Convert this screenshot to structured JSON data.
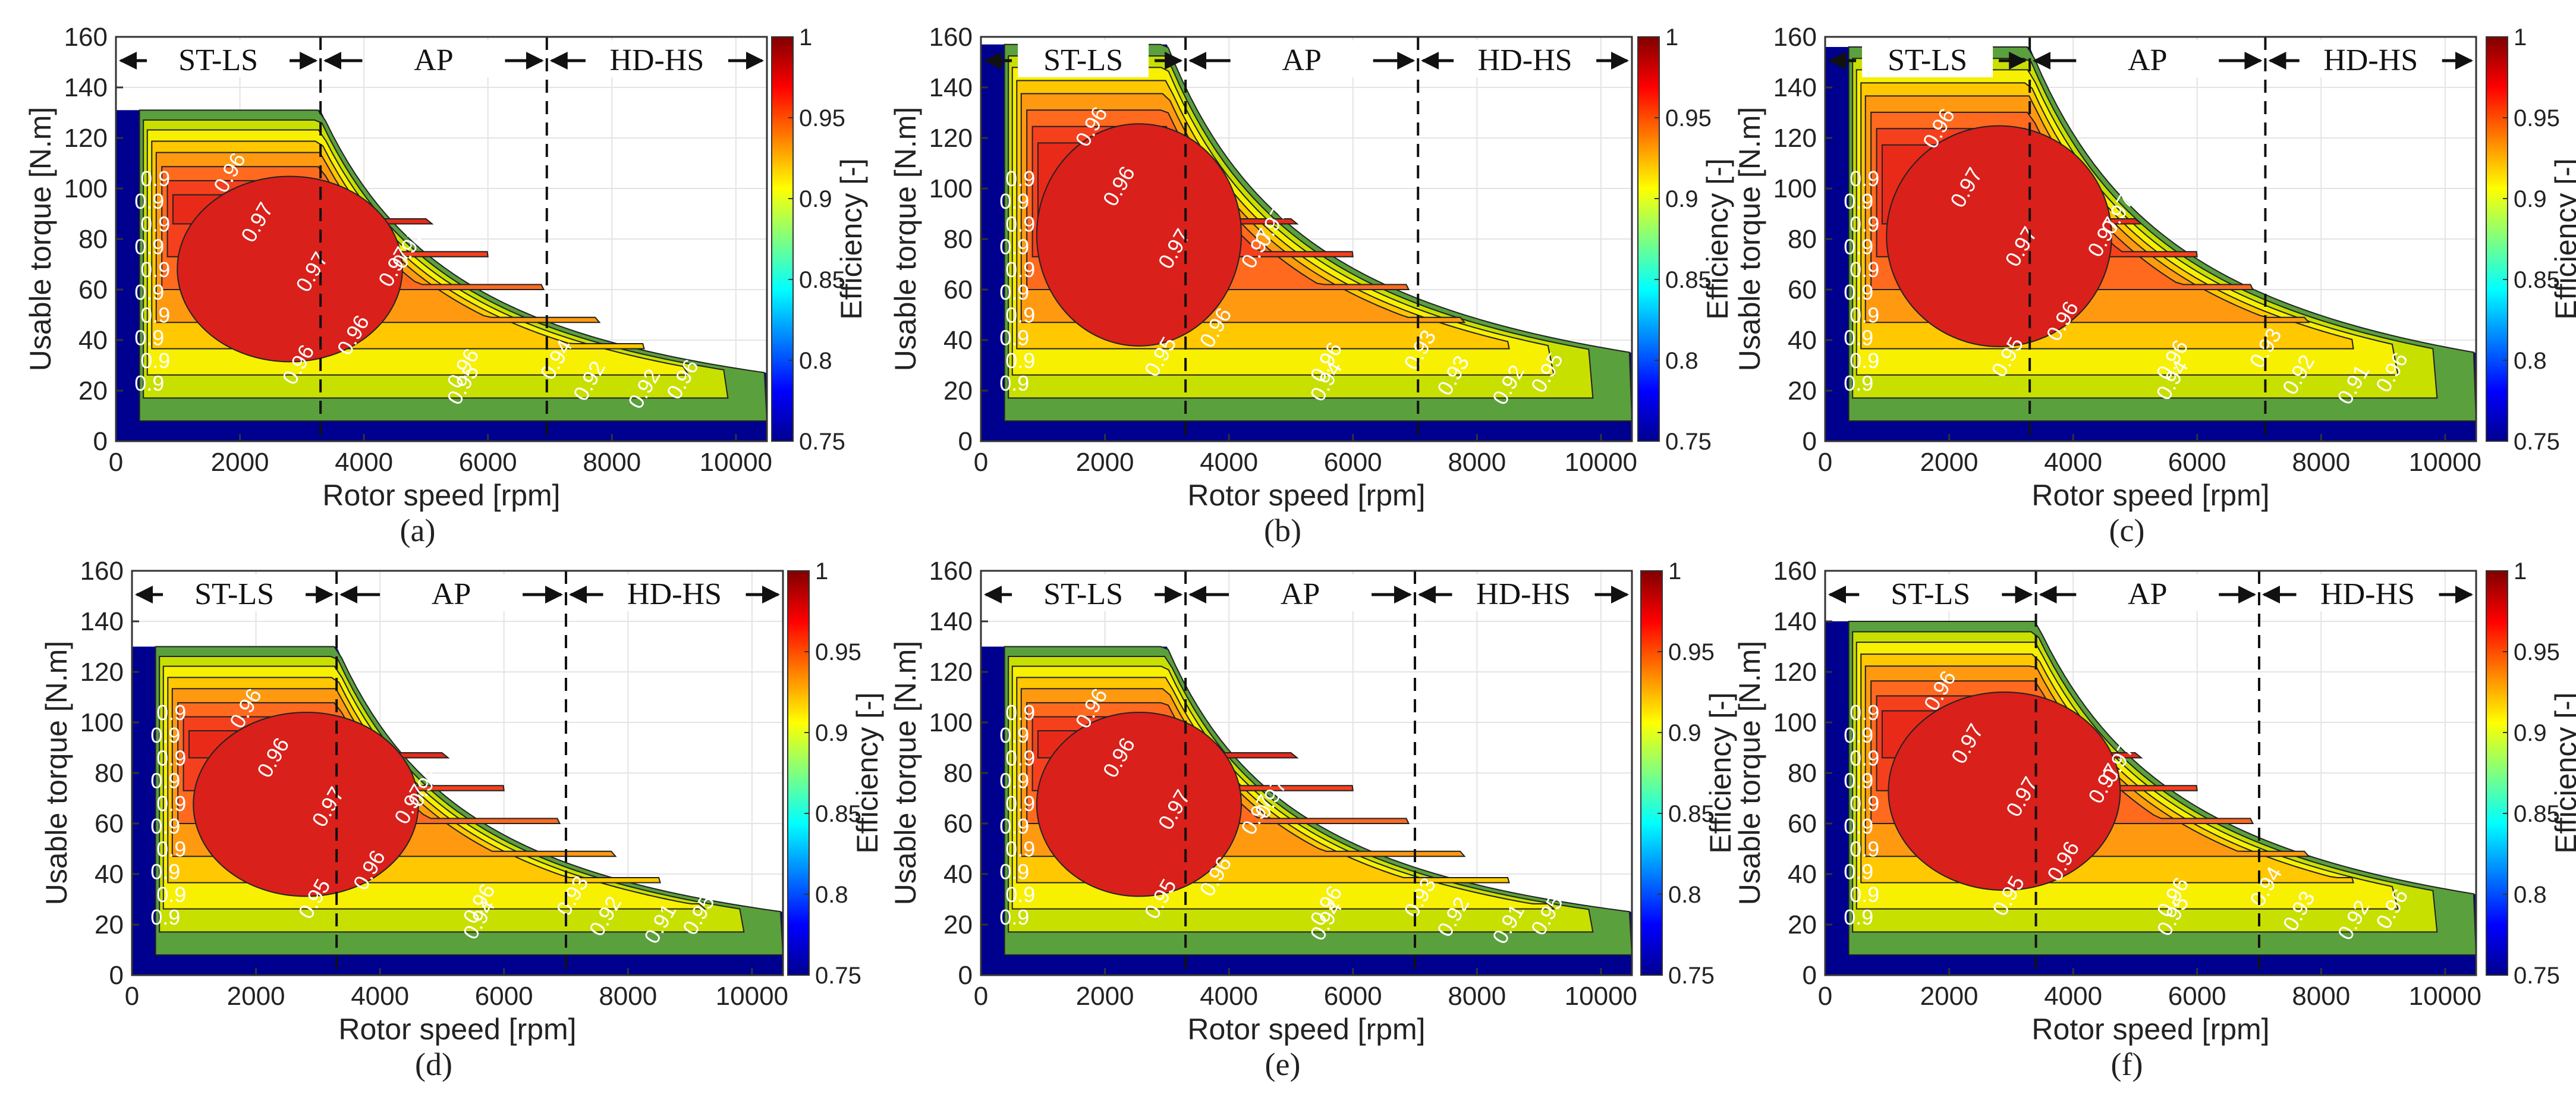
{
  "chart_data": [
    {
      "type": "heatmap",
      "panel_label": "(a)",
      "xlabel": "Rotor speed [rpm]",
      "ylabel": "Usable torque [N.m]",
      "colorbar_label": "Efficiency [-]",
      "xlim": [
        0,
        10500
      ],
      "ylim": [
        0,
        160
      ],
      "x_ticks": [
        "0",
        "2000",
        "4000",
        "6000",
        "8000",
        "10000"
      ],
      "y_ticks": [
        "0",
        "20",
        "40",
        "60",
        "80",
        "100",
        "120",
        "140",
        "160"
      ],
      "colorbar_ticks": [
        "0.75",
        "0.8",
        "0.85",
        "0.9",
        "0.95",
        "1"
      ],
      "colorbar_range": [
        0.75,
        1
      ],
      "regions": [
        "ST-LS",
        "AP",
        "HD-HS"
      ],
      "region_boundaries_rpm": [
        3300,
        6950
      ],
      "max_torque_nm": 131,
      "base_speed_rpm": 3300,
      "end_torque_nm": 27,
      "contour_labels": [
        "0.97",
        "0.97",
        "0.97",
        "0.97",
        "0.96",
        "0.96",
        "0.96",
        "0.96",
        "0.96",
        "0.95",
        "0.94",
        "0.92",
        "0.92"
      ]
    },
    {
      "type": "heatmap",
      "panel_label": "(b)",
      "xlabel": "Rotor speed [rpm]",
      "ylabel": "Usable torque [N.m]",
      "colorbar_label": "Efficiency [-]",
      "xlim": [
        0,
        10500
      ],
      "ylim": [
        0,
        160
      ],
      "x_ticks": [
        "0",
        "2000",
        "4000",
        "6000",
        "8000",
        "10000"
      ],
      "y_ticks": [
        "0",
        "20",
        "40",
        "60",
        "80",
        "100",
        "120",
        "140",
        "160"
      ],
      "colorbar_ticks": [
        "0.75",
        "0.8",
        "0.85",
        "0.9",
        "0.95",
        "1"
      ],
      "colorbar_range": [
        0.75,
        1
      ],
      "regions": [
        "ST-LS",
        "AP",
        "HD-HS"
      ],
      "region_boundaries_rpm": [
        3300,
        7050
      ],
      "max_torque_nm": 157,
      "base_speed_rpm": 3000,
      "end_torque_nm": 35,
      "contour_labels": [
        "0.97",
        "0.97",
        "0.97",
        "0.96",
        "0.96",
        "0.96",
        "0.96",
        "0.95",
        "0.95",
        "0.94",
        "0.93",
        "0.93",
        "0.92"
      ]
    },
    {
      "type": "heatmap",
      "panel_label": "(c)",
      "xlabel": "Rotor speed [rpm]",
      "ylabel": "Usable torque [N.m]",
      "colorbar_label": "Efficiency [-]",
      "xlim": [
        0,
        10500
      ],
      "ylim": [
        0,
        160
      ],
      "x_ticks": [
        "0",
        "2000",
        "4000",
        "6000",
        "8000",
        "10000"
      ],
      "y_ticks": [
        "0",
        "20",
        "40",
        "60",
        "80",
        "100",
        "120",
        "140",
        "160"
      ],
      "colorbar_ticks": [
        "0.75",
        "0.8",
        "0.85",
        "0.9",
        "0.95",
        "1"
      ],
      "colorbar_range": [
        0.75,
        1
      ],
      "regions": [
        "ST-LS",
        "AP",
        "HD-HS"
      ],
      "region_boundaries_rpm": [
        3300,
        7100
      ],
      "max_torque_nm": 156,
      "base_speed_rpm": 3300,
      "end_torque_nm": 35,
      "contour_labels": [
        "0.97",
        "0.97",
        "0.97",
        "0.97",
        "0.96",
        "0.96",
        "0.96",
        "0.96",
        "0.95",
        "0.94",
        "0.93",
        "0.92",
        "0.91"
      ]
    },
    {
      "type": "heatmap",
      "panel_label": "(d)",
      "xlabel": "Rotor speed [rpm]",
      "ylabel": "Usable torque [N.m]",
      "colorbar_label": "Efficiency [-]",
      "xlim": [
        0,
        10500
      ],
      "ylim": [
        0,
        160
      ],
      "x_ticks": [
        "0",
        "2000",
        "4000",
        "6000",
        "8000",
        "10000"
      ],
      "y_ticks": [
        "0",
        "20",
        "40",
        "60",
        "80",
        "100",
        "120",
        "140",
        "160"
      ],
      "colorbar_ticks": [
        "0.75",
        "0.8",
        "0.85",
        "0.9",
        "0.95",
        "1"
      ],
      "colorbar_range": [
        0.75,
        1
      ],
      "regions": [
        "ST-LS",
        "AP",
        "HD-HS"
      ],
      "region_boundaries_rpm": [
        3300,
        7000
      ],
      "max_torque_nm": 130,
      "base_speed_rpm": 3300,
      "end_torque_nm": 25,
      "contour_labels": [
        "0.97",
        "0.97",
        "0.97",
        "0.96",
        "0.96",
        "0.96",
        "0.96",
        "0.95",
        "0.95",
        "0.94",
        "0.93",
        "0.92",
        "0.91"
      ]
    },
    {
      "type": "heatmap",
      "panel_label": "(e)",
      "xlabel": "Rotor speed [rpm]",
      "ylabel": "Usable torque [N.m]",
      "colorbar_label": "Efficiency [-]",
      "xlim": [
        0,
        10500
      ],
      "ylim": [
        0,
        160
      ],
      "x_ticks": [
        "0",
        "2000",
        "4000",
        "6000",
        "8000",
        "10000"
      ],
      "y_ticks": [
        "0",
        "20",
        "40",
        "60",
        "80",
        "100",
        "120",
        "140",
        "160"
      ],
      "colorbar_ticks": [
        "0.75",
        "0.8",
        "0.85",
        "0.9",
        "0.95",
        "1"
      ],
      "colorbar_range": [
        0.75,
        1
      ],
      "regions": [
        "ST-LS",
        "AP",
        "HD-HS"
      ],
      "region_boundaries_rpm": [
        3300,
        7000
      ],
      "max_torque_nm": 130,
      "base_speed_rpm": 3000,
      "end_torque_nm": 25,
      "contour_labels": [
        "0.97",
        "0.97",
        "0.97",
        "0.96",
        "0.96",
        "0.96",
        "0.96",
        "0.95",
        "0.95",
        "0.94",
        "0.93",
        "0.92",
        "0.91"
      ]
    },
    {
      "type": "heatmap",
      "panel_label": "(f)",
      "xlabel": "Rotor speed [rpm]",
      "ylabel": "Usable torque [N.m]",
      "colorbar_label": "Efficiency [-]",
      "xlim": [
        0,
        10500
      ],
      "ylim": [
        0,
        160
      ],
      "x_ticks": [
        "0",
        "2000",
        "4000",
        "6000",
        "8000",
        "10000"
      ],
      "y_ticks": [
        "0",
        "20",
        "40",
        "60",
        "80",
        "100",
        "120",
        "140",
        "160"
      ],
      "colorbar_ticks": [
        "0.75",
        "0.8",
        "0.85",
        "0.9",
        "0.95",
        "1"
      ],
      "colorbar_range": [
        0.75,
        1
      ],
      "regions": [
        "ST-LS",
        "AP",
        "HD-HS"
      ],
      "region_boundaries_rpm": [
        3400,
        7000
      ],
      "max_torque_nm": 140,
      "base_speed_rpm": 3400,
      "end_torque_nm": 32,
      "contour_labels": [
        "0.97",
        "0.97",
        "0.97",
        "0.97",
        "0.96",
        "0.96",
        "0.96",
        "0.96",
        "0.95",
        "0.95",
        "0.94",
        "0.93",
        "0.92"
      ]
    }
  ]
}
